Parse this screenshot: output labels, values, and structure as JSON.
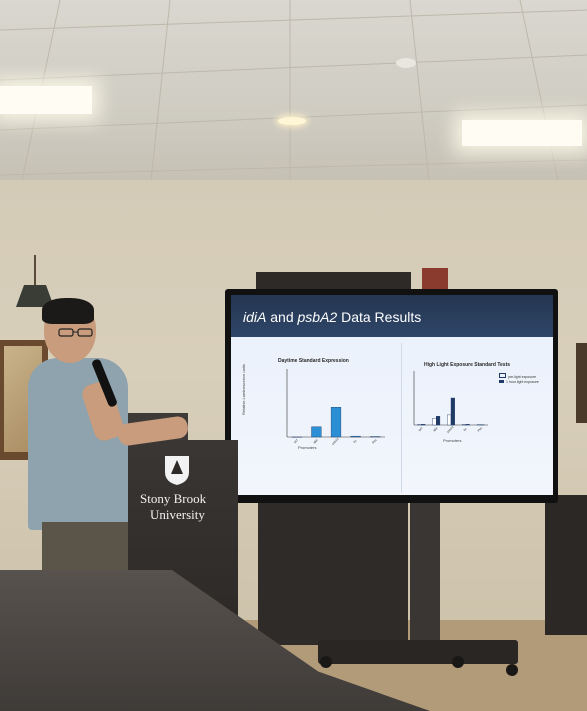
{
  "slide": {
    "title_gene1": "idiA",
    "title_and": " and ",
    "title_gene2": "psbA2",
    "title_rest": " Data Results",
    "left_chart": {
      "title": "Daytime Standard Expression",
      "xlabel": "Promoters",
      "ylabel": "Relative Luminescence units"
    },
    "right_chart": {
      "title": "High Light Exposure Standard Tests",
      "xlabel": "Promoters",
      "legend": [
        "pre-light exposure",
        "1 hour light exposure"
      ]
    }
  },
  "podium": {
    "line1": "Stony Brook",
    "line2": "University"
  },
  "chart_data": [
    {
      "type": "bar",
      "title": "Daytime Standard Expression",
      "xlabel": "Promoters",
      "ylabel": "Relative Luminescence units",
      "categories": [
        "WT",
        "idiA",
        "psbA2",
        "trc",
        "Ptrc"
      ],
      "values": [
        0,
        1.2,
        3.5,
        0.1,
        0.05
      ],
      "ylim": [
        0,
        8
      ]
    },
    {
      "type": "bar",
      "title": "High Light Exposure Standard Tests",
      "xlabel": "Promoters",
      "categories": [
        "WT",
        "idiA",
        "psbA2",
        "trc",
        "Ptrc"
      ],
      "series": [
        {
          "name": "pre-light exposure",
          "values": [
            0.1,
            1.0,
            1.5,
            0.1,
            0.05
          ]
        },
        {
          "name": "1 hour light exposure",
          "values": [
            0.1,
            1.3,
            4.0,
            0.1,
            0.05
          ]
        }
      ],
      "ylim": [
        0,
        8
      ]
    }
  ],
  "colors": {
    "slide_header": "#243650",
    "bar_main": "#2b8fd6",
    "bar_dark": "#1f3a66"
  }
}
